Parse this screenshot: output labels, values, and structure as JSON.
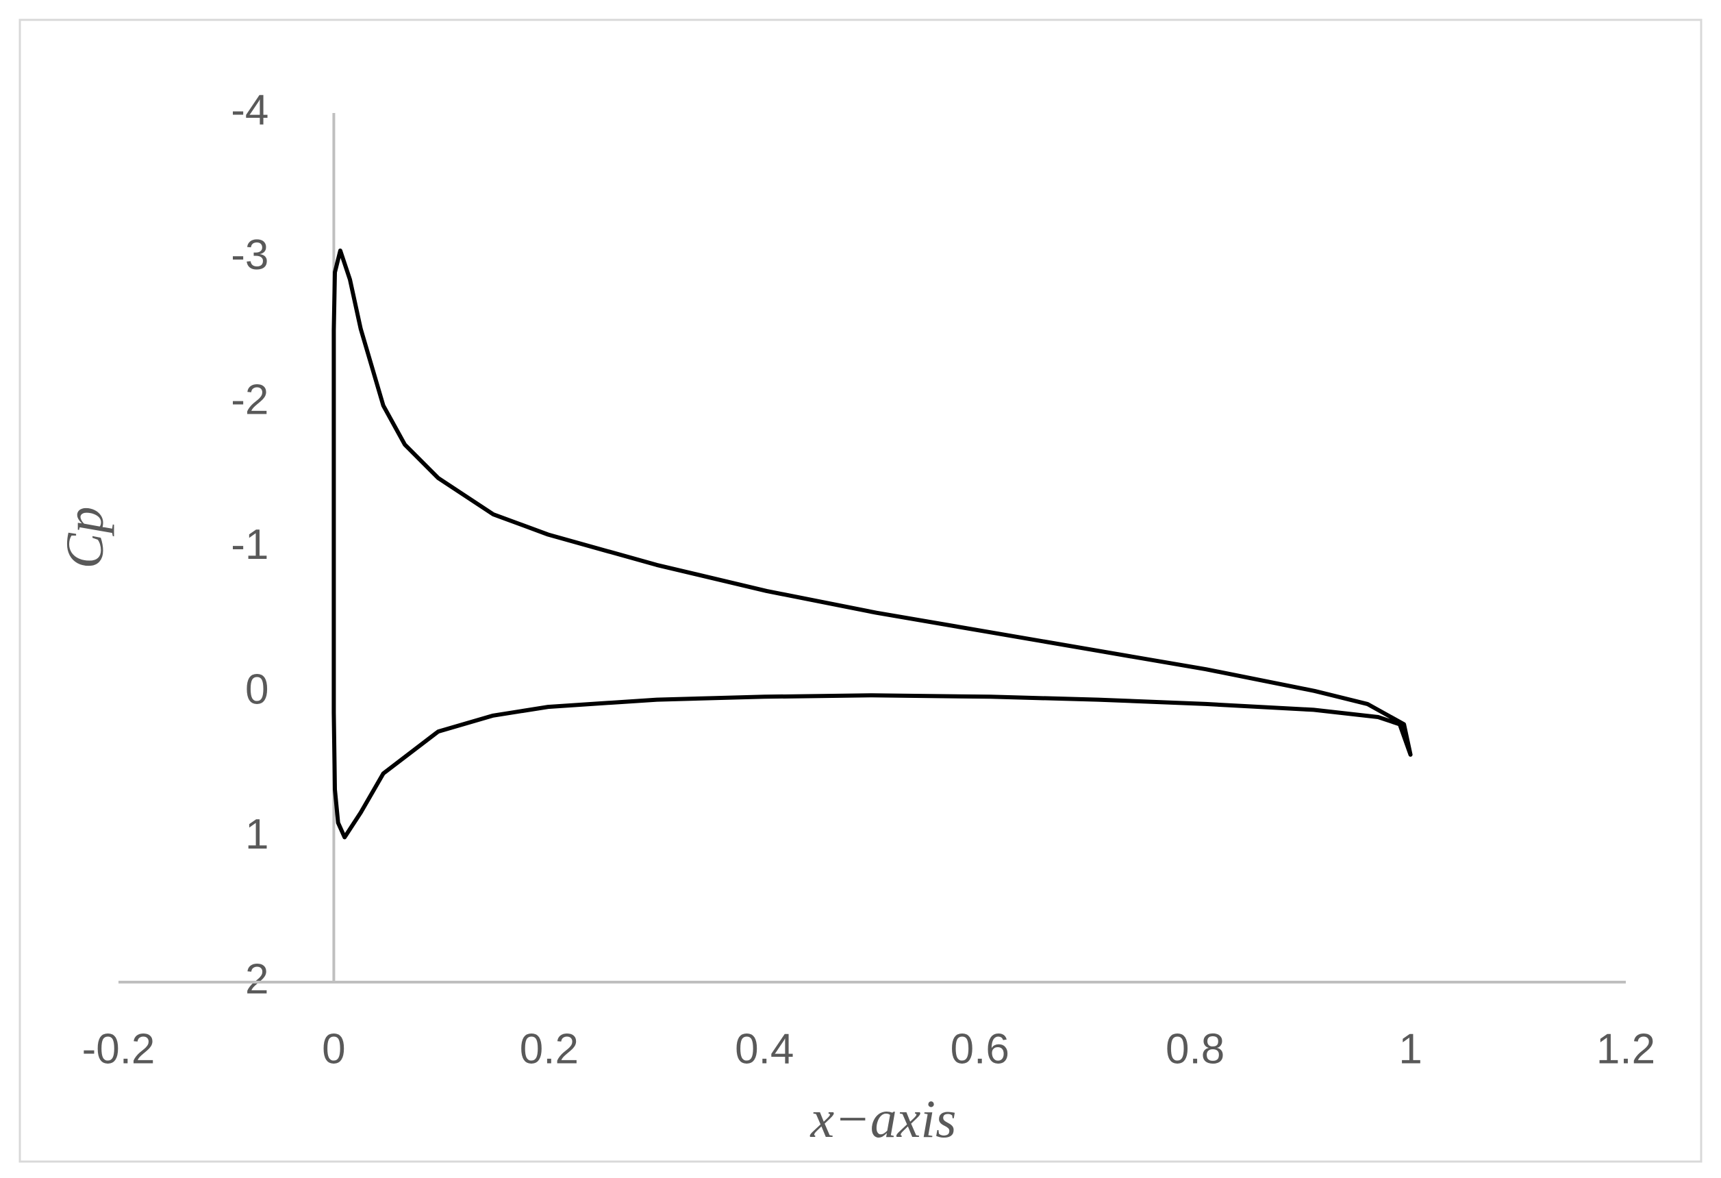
{
  "chart_data": {
    "type": "line",
    "x_label": "x−axis",
    "y_label": "Cp",
    "x": [
      1.0,
      0.994,
      0.96,
      0.911,
      0.81,
      0.708,
      0.606,
      0.504,
      0.402,
      0.3,
      0.199,
      0.148,
      0.097,
      0.066,
      0.046,
      0.025,
      0.015,
      0.006,
      0.001,
      0.0,
      0.0,
      0.0,
      0.001,
      0.004,
      0.01,
      0.025,
      0.046,
      0.097,
      0.148,
      0.199,
      0.3,
      0.4,
      0.5,
      0.61,
      0.71,
      0.81,
      0.91,
      0.97,
      0.99,
      1.0
    ],
    "values": [
      0.43,
      0.22,
      0.08,
      -0.01,
      -0.16,
      -0.29,
      -0.42,
      -0.55,
      -0.7,
      -0.88,
      -1.09,
      -1.23,
      -1.48,
      -1.71,
      -1.98,
      -2.51,
      -2.85,
      -3.05,
      -2.9,
      -2.5,
      -1.0,
      0.14,
      0.67,
      0.9,
      1.0,
      0.83,
      0.56,
      0.27,
      0.16,
      0.1,
      0.05,
      0.03,
      0.02,
      0.03,
      0.05,
      0.08,
      0.12,
      0.17,
      0.22,
      0.43
    ],
    "color": "#000000",
    "xlim": [
      -0.2,
      1.2
    ],
    "xticks": [
      -0.2,
      0,
      0.2,
      0.4,
      0.6,
      0.8,
      1,
      1.2
    ],
    "ylim": [
      -4,
      2
    ],
    "yticks": [
      -4,
      -3,
      -2,
      -1,
      0,
      1,
      2
    ],
    "y_reversed": true,
    "y_axis_crosses": 0,
    "grid": false
  }
}
